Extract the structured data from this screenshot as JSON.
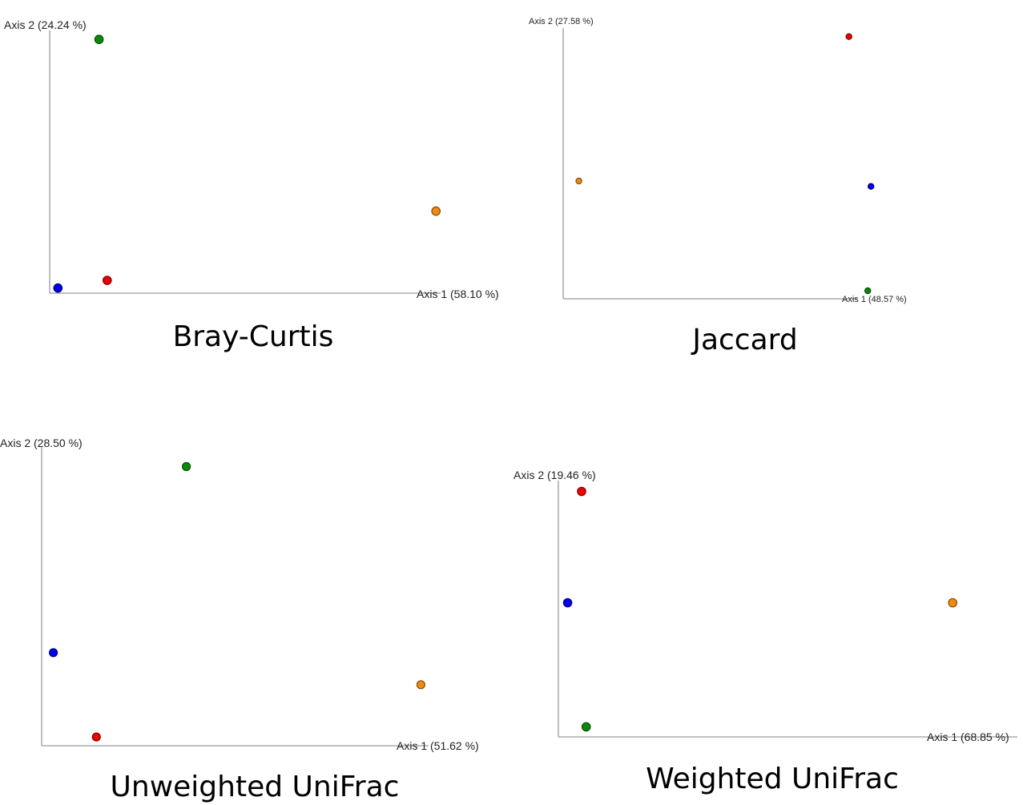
{
  "chart_data": [
    {
      "type": "scatter",
      "title": "Bray-Curtis",
      "xlabel": "Axis 1 (58.10 %)",
      "ylabel": "Axis 2 (24.24 %)",
      "xlim": [
        0,
        1
      ],
      "ylim": [
        0,
        1
      ],
      "series": [
        {
          "color": "#0000ee",
          "values": [
            {
              "x": 0.02,
              "y": 0.02
            }
          ]
        },
        {
          "color": "#ee0000",
          "values": [
            {
              "x": 0.14,
              "y": 0.05
            }
          ]
        },
        {
          "color": "#0a8a0a",
          "values": [
            {
              "x": 0.12,
              "y": 0.99
            }
          ]
        },
        {
          "color": "#f08a10",
          "values": [
            {
              "x": 0.94,
              "y": 0.32
            }
          ]
        }
      ]
    },
    {
      "type": "scatter",
      "title": "Jaccard",
      "xlabel": "Axis 1 (48.57 %)",
      "ylabel": "Axis 2 (27.58 %)",
      "xlim": [
        0,
        1
      ],
      "ylim": [
        0,
        1
      ],
      "series": [
        {
          "color": "#0000ee",
          "values": [
            {
              "x": 0.98,
              "y": 0.42
            }
          ]
        },
        {
          "color": "#ee0000",
          "values": [
            {
              "x": 0.91,
              "y": 0.98
            }
          ]
        },
        {
          "color": "#0a8a0a",
          "values": [
            {
              "x": 0.97,
              "y": 0.03
            }
          ]
        },
        {
          "color": "#f08a10",
          "values": [
            {
              "x": 0.05,
              "y": 0.44
            }
          ]
        }
      ]
    },
    {
      "type": "scatter",
      "title": "Unweighted UniFrac",
      "xlabel": "Axis 1 (51.62 %)",
      "ylabel": "Axis 2 (28.50 %)",
      "xlim": [
        0,
        1
      ],
      "ylim": [
        0,
        1
      ],
      "series": [
        {
          "color": "#0000ee",
          "values": [
            {
              "x": 0.03,
              "y": 0.32
            }
          ]
        },
        {
          "color": "#ee0000",
          "values": [
            {
              "x": 0.14,
              "y": 0.03
            }
          ]
        },
        {
          "color": "#0a8a0a",
          "values": [
            {
              "x": 0.37,
              "y": 0.96
            }
          ]
        },
        {
          "color": "#f08a10",
          "values": [
            {
              "x": 0.97,
              "y": 0.21
            }
          ]
        }
      ]
    },
    {
      "type": "scatter",
      "title": "Weighted UniFrac",
      "xlabel": "Axis 1 (68.85 %)",
      "ylabel": "Axis 2 (19.46 %)",
      "xlim": [
        0,
        1
      ],
      "ylim": [
        0,
        1
      ],
      "series": [
        {
          "color": "#0000ee",
          "values": [
            {
              "x": 0.02,
              "y": 0.53
            }
          ]
        },
        {
          "color": "#ee0000",
          "values": [
            {
              "x": 0.05,
              "y": 0.97
            }
          ]
        },
        {
          "color": "#0a8a0a",
          "values": [
            {
              "x": 0.06,
              "y": 0.04
            }
          ]
        },
        {
          "color": "#f08a10",
          "values": [
            {
              "x": 0.85,
              "y": 0.53
            }
          ]
        }
      ]
    }
  ]
}
